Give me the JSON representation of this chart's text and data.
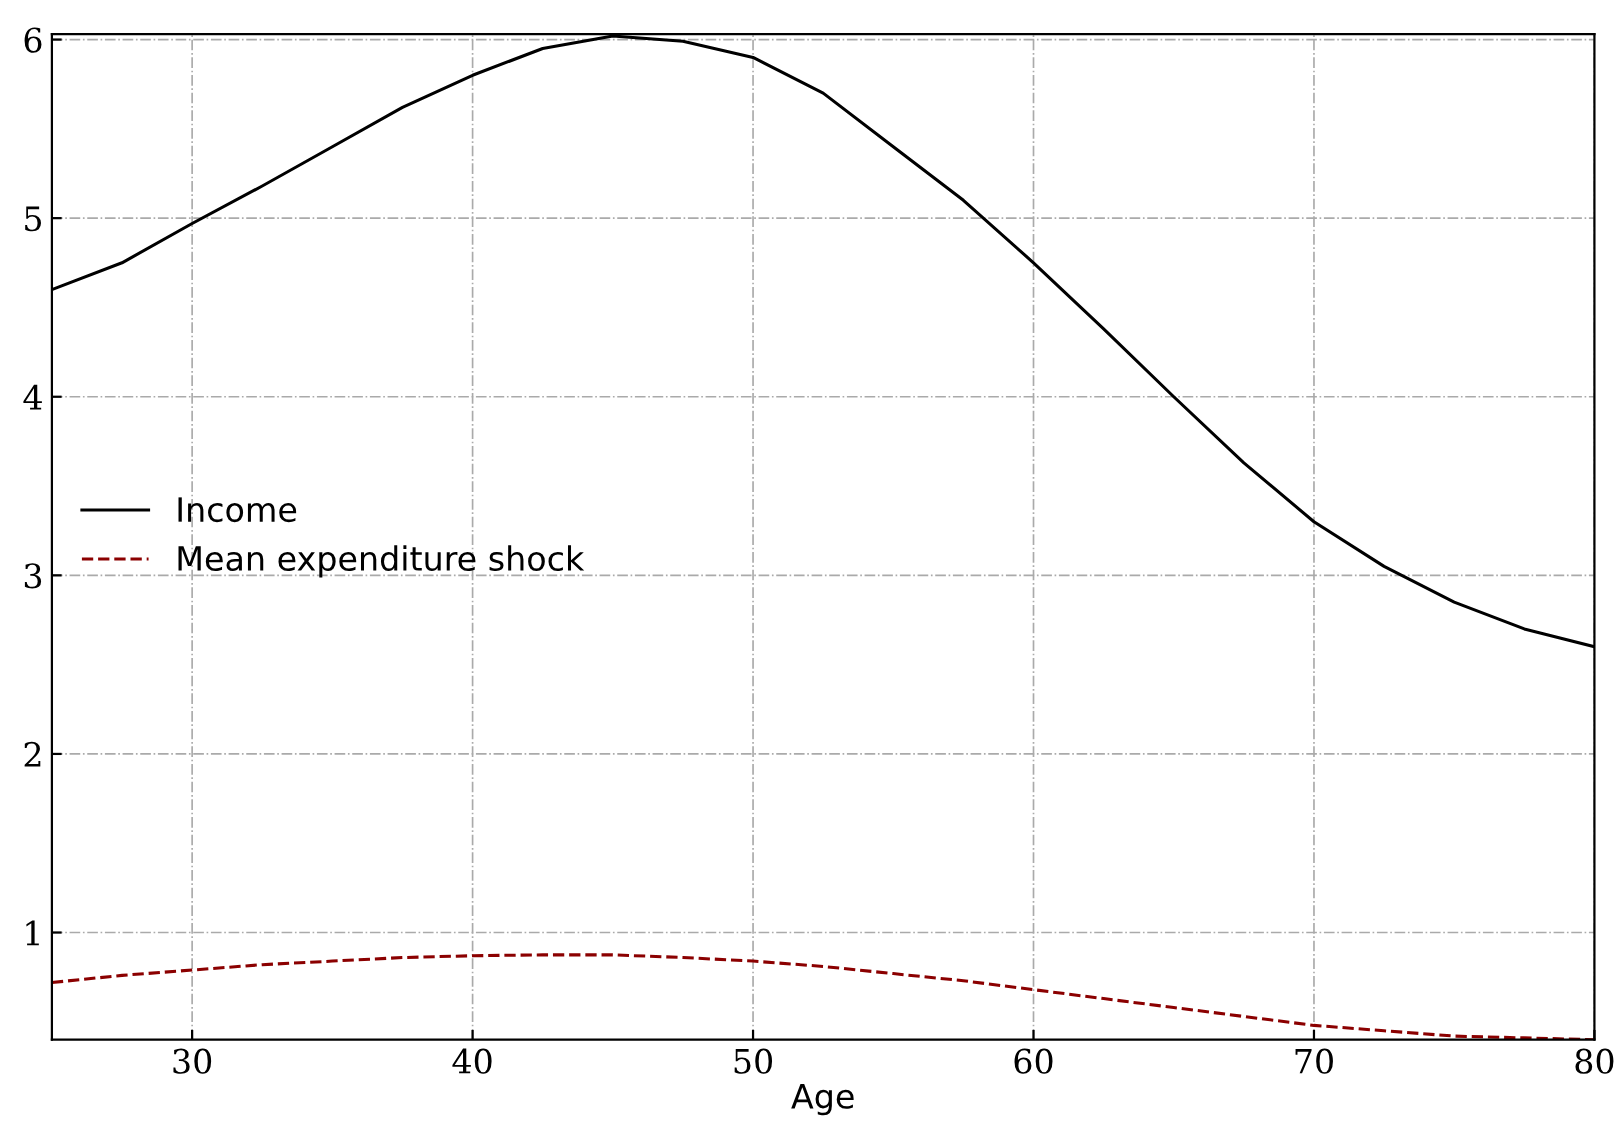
{
  "chart_data": {
    "type": "line",
    "xlabel": "Age",
    "x": [
      25,
      27.5,
      30,
      32.5,
      35,
      37.5,
      40,
      42.5,
      45,
      47.5,
      50,
      52.5,
      55,
      57.5,
      60,
      62.5,
      65,
      67.5,
      70,
      72.5,
      75,
      77.5,
      80
    ],
    "series": [
      {
        "name": "Income",
        "color": "#000000",
        "line_style": "solid",
        "values": [
          4.6,
          4.75,
          4.97,
          5.18,
          5.4,
          5.62,
          5.8,
          5.95,
          6.02,
          5.99,
          5.9,
          5.7,
          5.4,
          5.1,
          4.75,
          4.38,
          4.0,
          3.63,
          3.3,
          3.05,
          2.85,
          2.7,
          2.6
        ]
      },
      {
        "name": "Mean expenditure shock",
        "color": "#8b0000",
        "line_style": "dashed",
        "values": [
          0.72,
          0.76,
          0.79,
          0.82,
          0.84,
          0.86,
          0.87,
          0.875,
          0.875,
          0.86,
          0.84,
          0.81,
          0.77,
          0.73,
          0.68,
          0.63,
          0.58,
          0.53,
          0.48,
          0.45,
          0.42,
          0.41,
          0.4
        ]
      }
    ],
    "xlim": [
      25,
      80
    ],
    "xticks": [
      30,
      40,
      50,
      60,
      70,
      80
    ],
    "ylim": [
      0.4,
      6.03
    ],
    "yticks": [
      1,
      2,
      3,
      4,
      5,
      6
    ],
    "grid": true,
    "legend": "left",
    "marker": "none"
  }
}
